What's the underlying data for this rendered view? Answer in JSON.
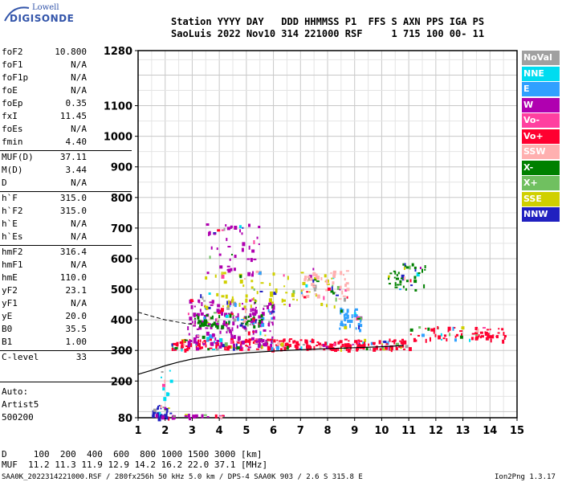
{
  "logo": {
    "line1": "Lowell",
    "line2": "DIGISONDE"
  },
  "header": {
    "row1": "Station YYYY DAY   DDD HHMMSS P1  FFS S AXN PPS IGA PS",
    "row2": "SaoLuis 2022 Nov10 314 221000 RSF     1 715 100 00- 11"
  },
  "params": [
    {
      "name": "foF2",
      "value": "10.800"
    },
    {
      "name": "foF1",
      "value": "N/A"
    },
    {
      "name": "foF1p",
      "value": "N/A"
    },
    {
      "name": "foE",
      "value": "N/A"
    },
    {
      "name": "foEp",
      "value": "0.35"
    },
    {
      "name": "fxI",
      "value": "11.45"
    },
    {
      "name": "foEs",
      "value": "N/A"
    },
    {
      "name": "fmin",
      "value": "4.40"
    },
    {
      "name": "MUF(D)",
      "value": "37.11"
    },
    {
      "name": "M(D)",
      "value": "3.44"
    },
    {
      "name": "D",
      "value": "N/A"
    },
    {
      "name": "h`F",
      "value": "315.0"
    },
    {
      "name": "h`F2",
      "value": "315.0"
    },
    {
      "name": "h`E",
      "value": "N/A"
    },
    {
      "name": "h`Es",
      "value": "N/A"
    },
    {
      "name": "hmF2",
      "value": "316.4"
    },
    {
      "name": "hmF1",
      "value": "N/A"
    },
    {
      "name": "hmE",
      "value": "110.0"
    },
    {
      "name": "yF2",
      "value": "23.1"
    },
    {
      "name": "yF1",
      "value": "N/A"
    },
    {
      "name": "yE",
      "value": "20.0"
    },
    {
      "name": "B0",
      "value": "35.5"
    },
    {
      "name": "B1",
      "value": "1.00"
    },
    {
      "name": "C-level",
      "value": "33"
    }
  ],
  "scaler": {
    "line1": "Auto:",
    "line2": "Artist5",
    "line3": "500200"
  },
  "legend": [
    {
      "label": "NoVal",
      "color": "#a0a0a0"
    },
    {
      "label": "NNE",
      "color": "#00dcf0"
    },
    {
      "label": "E",
      "color": "#30a0ff"
    },
    {
      "label": "W",
      "color": "#b000b0"
    },
    {
      "label": "Vo-",
      "color": "#ff40a0"
    },
    {
      "label": "Vo+",
      "color": "#ff0030"
    },
    {
      "label": "SSW",
      "color": "#ffb0b0"
    },
    {
      "label": "X-",
      "color": "#008000"
    },
    {
      "label": "X+",
      "color": "#70c060"
    },
    {
      "label": "SSE",
      "color": "#d0d000"
    },
    {
      "label": "NNW",
      "color": "#2020c0"
    }
  ],
  "footer": {
    "dist_row": "D     100  200  400  600  800 1000 1500 3000 [km]",
    "muf_row": "MUF  11.2 11.3 11.9 12.9 14.2 16.2 22.0 37.1 [MHz]",
    "file_row": "SAA0K_2022314221000.RSF / 280fx256h 50 kHz 5.0 km / DPS-4 SAA0K 903 / 2.6 S 315.8 E",
    "version": "Ion2Png 1.3.17"
  },
  "chart_data": {
    "type": "scatter",
    "xlim": [
      1,
      15
    ],
    "x_ticks": [
      1,
      2,
      3,
      4,
      5,
      6,
      7,
      8,
      9,
      10,
      11,
      12,
      13,
      14,
      15
    ],
    "y_ticks": [
      80,
      200,
      300,
      400,
      500,
      600,
      700,
      800,
      900,
      1000,
      1100,
      1280
    ],
    "ylim": [
      80,
      1280
    ],
    "xlabel": "",
    "ylabel": "",
    "grid": true,
    "trace_profile": {
      "x": [
        1.0,
        1.5,
        2.0,
        2.5,
        3.0,
        4.0,
        5.0,
        6.0,
        7.0,
        8.0,
        9.0,
        10.0,
        10.8
      ],
      "y": [
        222,
        235,
        250,
        262,
        272,
        284,
        292,
        298,
        302,
        306,
        309,
        312,
        316
      ]
    },
    "trace_dashed": {
      "x": [
        1.0,
        1.5,
        2.0,
        2.5,
        3.0
      ],
      "y": [
        425,
        412,
        400,
        392,
        385
      ]
    },
    "echo_clusters": [
      {
        "label": "Vo+",
        "xmin": 2.2,
        "xmax": 11.0,
        "ymin": 305,
        "ymax": 340,
        "count": 300
      },
      {
        "label": "W",
        "xmin": 2.8,
        "xmax": 6.0,
        "ymin": 310,
        "ymax": 470,
        "count": 220
      },
      {
        "label": "Vo+",
        "xmin": 11.0,
        "xmax": 14.6,
        "ymin": 335,
        "ymax": 380,
        "count": 70
      },
      {
        "label": "X-",
        "xmin": 3.0,
        "xmax": 5.6,
        "ymin": 380,
        "ymax": 420,
        "count": 60
      },
      {
        "label": "SSE",
        "xmin": 3.2,
        "xmax": 8.5,
        "ymin": 440,
        "ymax": 560,
        "count": 80
      },
      {
        "label": "SSW",
        "xmin": 7.0,
        "xmax": 8.7,
        "ymin": 470,
        "ymax": 570,
        "count": 60
      },
      {
        "label": "X-",
        "xmin": 10.2,
        "xmax": 11.6,
        "ymin": 500,
        "ymax": 590,
        "count": 45
      },
      {
        "label": "E",
        "xmin": 8.4,
        "xmax": 9.2,
        "ymin": 370,
        "ymax": 440,
        "count": 40
      },
      {
        "label": "W",
        "xmin": 3.5,
        "xmax": 5.5,
        "ymin": 550,
        "ymax": 720,
        "count": 50
      },
      {
        "label": "NNW",
        "xmin": 1.5,
        "xmax": 2.2,
        "ymin": 80,
        "ymax": 125,
        "count": 35
      },
      {
        "label": "W",
        "xmin": 2.2,
        "xmax": 4.2,
        "ymin": 82,
        "ymax": 95,
        "count": 20
      },
      {
        "label": "NNE",
        "xmin": 1.8,
        "xmax": 2.2,
        "ymin": 140,
        "ymax": 240,
        "count": 10
      }
    ]
  }
}
